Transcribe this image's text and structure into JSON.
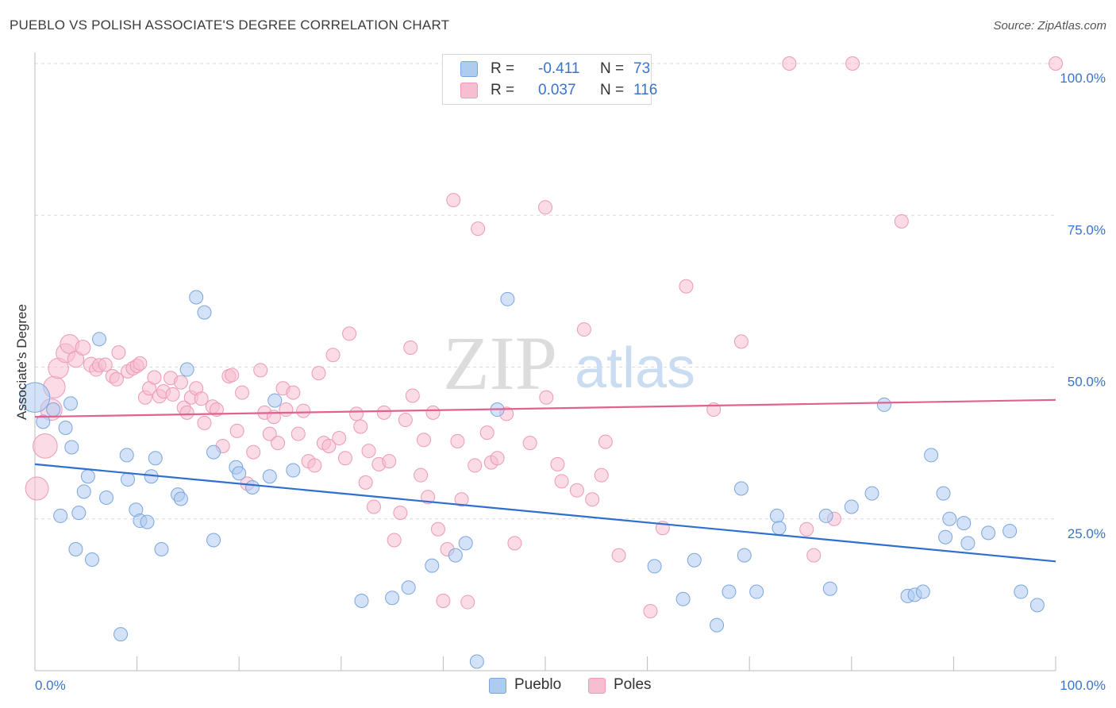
{
  "header": {
    "title": "PUEBLO VS POLISH ASSOCIATE'S DEGREE CORRELATION CHART",
    "source": "Source: ZipAtlas.com"
  },
  "watermark": {
    "part1": "ZIP",
    "part2": "atlas"
  },
  "legend_top": {
    "rows": [
      {
        "r_label": "R =",
        "r_value": "-0.411",
        "n_label": "N =",
        "n_value": "73"
      },
      {
        "r_label": "R =",
        "r_value": "0.037",
        "n_label": "N =",
        "n_value": "116"
      }
    ]
  },
  "legend_bottom": {
    "items": [
      "Pueblo",
      "Poles"
    ]
  },
  "colors": {
    "pueblo_fill": "#aecbf0",
    "pueblo_stroke": "#7aa6de",
    "pueblo_line": "#2f6fcf",
    "poles_fill": "#f7bdd0",
    "poles_stroke": "#ec9ab5",
    "poles_line": "#e0628f",
    "tick_label": "#3a74c9",
    "grid": "#d9d9d9"
  },
  "chart_data": {
    "type": "scatter",
    "title": "PUEBLO VS POLISH ASSOCIATE'S DEGREE CORRELATION CHART",
    "xlabel": "",
    "ylabel": "Associate's Degree",
    "xlim": [
      0,
      100
    ],
    "ylim": [
      0,
      100
    ],
    "x_tick_labels": [
      "0.0%",
      "100.0%"
    ],
    "y_tick_labels": [
      "25.0%",
      "50.0%",
      "75.0%",
      "100.0%"
    ],
    "y_ticks": [
      25,
      50,
      75,
      100
    ],
    "grid": true,
    "legend": "top-center",
    "series": [
      {
        "name": "Pueblo",
        "r": -0.411,
        "n": 73,
        "trend": [
          [
            0,
            34
          ],
          [
            100,
            18
          ]
        ],
        "points": [
          [
            0,
            45,
            2.2
          ],
          [
            0.8,
            41,
            1
          ],
          [
            1.8,
            43,
            1
          ],
          [
            3,
            40,
            1
          ],
          [
            3.5,
            44,
            1
          ],
          [
            2.5,
            25.5,
            1
          ],
          [
            3.6,
            36.8,
            1
          ],
          [
            4,
            20,
            1
          ],
          [
            4.3,
            26,
            1
          ],
          [
            4.8,
            29.5,
            1
          ],
          [
            5.2,
            32,
            1
          ],
          [
            5.6,
            18.3,
            1
          ],
          [
            6.3,
            54.6,
            1
          ],
          [
            7,
            28.5,
            1
          ],
          [
            8.4,
            6,
            1
          ],
          [
            9,
            35.5,
            1
          ],
          [
            9.1,
            31.5,
            1
          ],
          [
            9.9,
            26.5,
            1
          ],
          [
            10.3,
            24.7,
            1
          ],
          [
            11,
            24.5,
            1
          ],
          [
            11.4,
            32,
            1
          ],
          [
            11.8,
            35,
            1
          ],
          [
            12.4,
            20,
            1
          ],
          [
            14,
            29,
            1
          ],
          [
            14.3,
            28.3,
            1
          ],
          [
            14.9,
            49.6,
            1
          ],
          [
            15.8,
            61.5,
            1
          ],
          [
            16.6,
            59,
            1
          ],
          [
            17.5,
            36,
            1
          ],
          [
            17.5,
            21.5,
            1
          ],
          [
            19.7,
            33.5,
            1
          ],
          [
            20,
            32.5,
            1
          ],
          [
            21.3,
            30.2,
            1
          ],
          [
            23,
            32,
            1
          ],
          [
            23.5,
            44.5,
            1
          ],
          [
            25.3,
            33,
            1
          ],
          [
            32,
            11.5,
            1
          ],
          [
            35,
            12,
            1
          ],
          [
            36.6,
            13.7,
            1
          ],
          [
            38.9,
            17.3,
            1
          ],
          [
            41.2,
            19,
            1
          ],
          [
            42.2,
            21,
            1
          ],
          [
            43.3,
            1.5,
            1
          ],
          [
            45.3,
            43,
            1
          ],
          [
            46.3,
            61.2,
            1
          ],
          [
            60.7,
            17.2,
            1
          ],
          [
            63.5,
            11.8,
            1
          ],
          [
            64.6,
            18.2,
            1
          ],
          [
            66.8,
            7.5,
            1
          ],
          [
            68,
            13,
            1
          ],
          [
            69.2,
            30,
            1
          ],
          [
            69.5,
            19,
            1
          ],
          [
            70.7,
            13,
            1
          ],
          [
            72.7,
            25.5,
            1
          ],
          [
            72.9,
            23.5,
            1
          ],
          [
            77.5,
            25.5,
            1
          ],
          [
            77.9,
            13.5,
            1
          ],
          [
            80,
            27,
            1
          ],
          [
            82,
            29.2,
            1
          ],
          [
            83.2,
            43.8,
            1
          ],
          [
            85.5,
            12.3,
            1
          ],
          [
            86.2,
            12.5,
            1
          ],
          [
            87,
            13,
            1
          ],
          [
            87.8,
            35.5,
            1
          ],
          [
            89,
            29.2,
            1
          ],
          [
            89.2,
            22,
            1
          ],
          [
            89.6,
            25,
            1
          ],
          [
            91,
            24.3,
            1
          ],
          [
            91.4,
            21,
            1
          ],
          [
            93.4,
            22.7,
            1
          ],
          [
            95.5,
            23,
            1
          ],
          [
            96.6,
            13,
            1
          ],
          [
            98.2,
            10.8,
            1
          ]
        ]
      },
      {
        "name": "Poles",
        "r": 0.037,
        "n": 116,
        "trend": [
          [
            0,
            41.8
          ],
          [
            100,
            44.6
          ]
        ],
        "points": [
          [
            0.2,
            30,
            1.7
          ],
          [
            1,
            37,
            1.8
          ],
          [
            1.6,
            43,
            1.6
          ],
          [
            1.9,
            46.7,
            1.6
          ],
          [
            2.3,
            49.8,
            1.5
          ],
          [
            3,
            52.3,
            1.4
          ],
          [
            3.4,
            53.8,
            1.4
          ],
          [
            4,
            51.3,
            1.2
          ],
          [
            4.7,
            53.2,
            1.1
          ],
          [
            5.5,
            50.4,
            1.1
          ],
          [
            6,
            49.6,
            1
          ],
          [
            6.3,
            50.3,
            1
          ],
          [
            6.9,
            50.4,
            1
          ],
          [
            7.6,
            48.5,
            1
          ],
          [
            8,
            48,
            1
          ],
          [
            8.2,
            52.4,
            1
          ],
          [
            9.1,
            49.3,
            1
          ],
          [
            9.6,
            49.8,
            1
          ],
          [
            10,
            50.2,
            1
          ],
          [
            10.3,
            50.6,
            1
          ],
          [
            10.8,
            45,
            1
          ],
          [
            11.2,
            46.5,
            1
          ],
          [
            11.7,
            48.3,
            1
          ],
          [
            12.2,
            45.2,
            1
          ],
          [
            12.6,
            46,
            1
          ],
          [
            13.3,
            48.2,
            1
          ],
          [
            13.5,
            45.5,
            1
          ],
          [
            14.3,
            47.5,
            1
          ],
          [
            14.6,
            43.3,
            1
          ],
          [
            14.9,
            42.5,
            1
          ],
          [
            15.3,
            45,
            1
          ],
          [
            15.8,
            46.5,
            1
          ],
          [
            16.3,
            44.8,
            1
          ],
          [
            16.6,
            40.8,
            1
          ],
          [
            17.4,
            43.5,
            1
          ],
          [
            17.8,
            43,
            1
          ],
          [
            18.4,
            37,
            1
          ],
          [
            19,
            48.5,
            1
          ],
          [
            19.3,
            48.7,
            1
          ],
          [
            19.8,
            39.5,
            1
          ],
          [
            20.3,
            45.8,
            1
          ],
          [
            20.8,
            30.8,
            1
          ],
          [
            21.4,
            36,
            1
          ],
          [
            22.1,
            49.5,
            1
          ],
          [
            22.5,
            42.5,
            1
          ],
          [
            23,
            39,
            1
          ],
          [
            23.4,
            41.8,
            1
          ],
          [
            23.8,
            37.5,
            1
          ],
          [
            24.3,
            46.5,
            1
          ],
          [
            24.6,
            43,
            1
          ],
          [
            25.3,
            45.8,
            1
          ],
          [
            25.8,
            39,
            1
          ],
          [
            26.3,
            42.8,
            1
          ],
          [
            26.8,
            34.5,
            1
          ],
          [
            27.4,
            33.8,
            1
          ],
          [
            27.8,
            49,
            1
          ],
          [
            28.3,
            37.5,
            1
          ],
          [
            28.8,
            37,
            1
          ],
          [
            29.2,
            52,
            1
          ],
          [
            29.8,
            38.3,
            1
          ],
          [
            30.4,
            35,
            1
          ],
          [
            30.8,
            55.5,
            1
          ],
          [
            31.5,
            42.3,
            1
          ],
          [
            31.9,
            40.2,
            1
          ],
          [
            32.4,
            31,
            1
          ],
          [
            32.7,
            36.2,
            1
          ],
          [
            33.2,
            27,
            1
          ],
          [
            33.7,
            34,
            1
          ],
          [
            34.2,
            42.5,
            1
          ],
          [
            34.7,
            34.5,
            1
          ],
          [
            35.2,
            21.5,
            1
          ],
          [
            35.8,
            26,
            1
          ],
          [
            36.3,
            41.3,
            1
          ],
          [
            36.8,
            53.2,
            1
          ],
          [
            37,
            45.3,
            1
          ],
          [
            37.8,
            32.2,
            1
          ],
          [
            38.1,
            38,
            1
          ],
          [
            38.5,
            28.6,
            1
          ],
          [
            39,
            42.5,
            1
          ],
          [
            39.5,
            23.3,
            1
          ],
          [
            40,
            11.5,
            1
          ],
          [
            40.4,
            20,
            1
          ],
          [
            41,
            77.5,
            1
          ],
          [
            41.4,
            37.8,
            1
          ],
          [
            41.8,
            28.2,
            1
          ],
          [
            42.4,
            11.3,
            1
          ],
          [
            43.1,
            33.8,
            1
          ],
          [
            43.4,
            72.8,
            1
          ],
          [
            44.3,
            39.2,
            1
          ],
          [
            44.7,
            34.3,
            1
          ],
          [
            45.3,
            35,
            1
          ],
          [
            46.2,
            42.3,
            1
          ],
          [
            47,
            21,
            1
          ],
          [
            48.5,
            37.5,
            1
          ],
          [
            50,
            76.3,
            1
          ],
          [
            50.1,
            45,
            1
          ],
          [
            51.2,
            34,
            1
          ],
          [
            51.6,
            31.2,
            1
          ],
          [
            53.1,
            29.7,
            1
          ],
          [
            53.8,
            56.2,
            1
          ],
          [
            54.6,
            28.2,
            1
          ],
          [
            55.5,
            32.2,
            1
          ],
          [
            55.9,
            37.7,
            1
          ],
          [
            57.2,
            19,
            1
          ],
          [
            60.3,
            9.8,
            1
          ],
          [
            61.5,
            23.5,
            1
          ],
          [
            63.8,
            63.3,
            1
          ],
          [
            66.5,
            43,
            1
          ],
          [
            69.2,
            54.2,
            1
          ],
          [
            73.9,
            100,
            1
          ],
          [
            75.6,
            23.3,
            1
          ],
          [
            76.3,
            19,
            1
          ],
          [
            78.3,
            25,
            1
          ],
          [
            80.1,
            100,
            1
          ],
          [
            84.9,
            74,
            1
          ],
          [
            100,
            100,
            1
          ]
        ]
      }
    ]
  }
}
